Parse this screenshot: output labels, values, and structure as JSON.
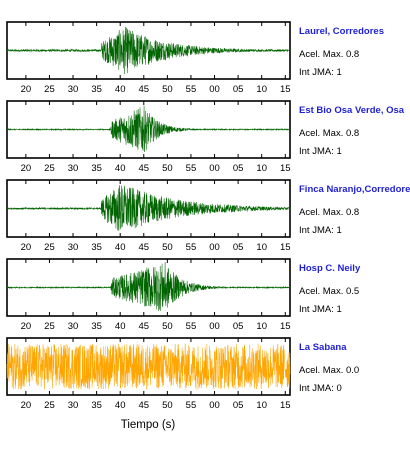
{
  "chart_data": {
    "type": "line",
    "xlabel": "Tiempo (s)",
    "x_tick_labels": [
      "20",
      "25",
      "30",
      "35",
      "40",
      "45",
      "50",
      "55",
      "00",
      "05",
      "10",
      "15"
    ],
    "panels": [
      {
        "name": "Laurel, Corredores",
        "accel_label": "Acel. Max. 0.8",
        "jma_label": "Int JMA: 1",
        "color": "#006400",
        "onset": 36,
        "peak": 41,
        "amp": 0.9,
        "decay": 9,
        "noise": 0.04
      },
      {
        "name": "Est Bio Osa Verde, Osa",
        "accel_label": "Acel. Max. 0.8",
        "jma_label": "Int JMA: 1",
        "color": "#006400",
        "onset": 38,
        "peak": 45,
        "amp": 0.9,
        "decay": 3,
        "noise": 0.02
      },
      {
        "name": "Finca Naranjo,Corredores",
        "accel_label": "Acel. Max. 0.8",
        "jma_label": "Int JMA: 1",
        "color": "#006400",
        "onset": 36,
        "peak": 40,
        "amp": 0.95,
        "decay": 12,
        "noise": 0.03
      },
      {
        "name": "Hosp C. Neily",
        "accel_label": "Acel. Max. 0.5",
        "jma_label": "Int JMA: 1",
        "color": "#006400",
        "onset": 38,
        "peak": 49.5,
        "amp": 0.95,
        "decay": 3.5,
        "noise": 0.02
      },
      {
        "name": "La Sabana",
        "accel_label": "Acel. Max. 0.0",
        "jma_label": "Int JMA: 0",
        "color": "#ffa500",
        "onset": 16,
        "peak": 16,
        "amp": 0.0,
        "decay": 1,
        "noise": 0.85
      }
    ]
  }
}
